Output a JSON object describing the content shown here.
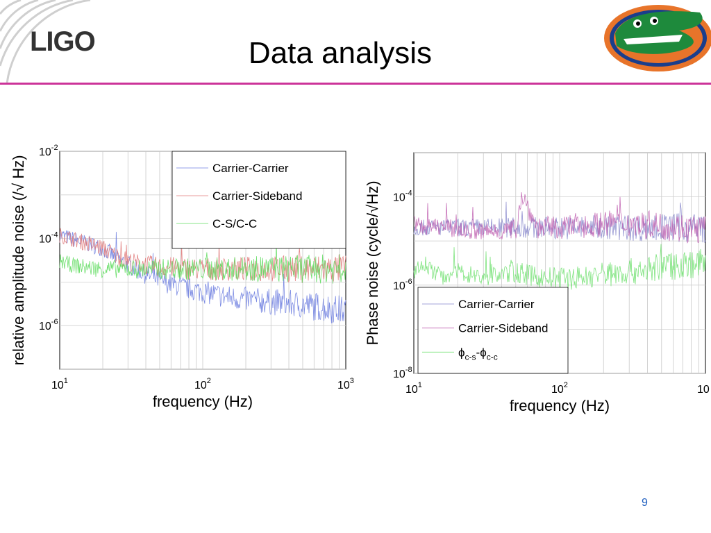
{
  "slide": {
    "title": "Data analysis",
    "logo_text": "LIGO",
    "page_number": "9",
    "accent_color": "#cc3399"
  },
  "chart_data": [
    {
      "type": "line",
      "xscale": "log",
      "yscale": "log",
      "xlim": [
        10,
        1000
      ],
      "ylim": [
        1e-07,
        0.01
      ],
      "xlabel": "frequency (Hz)",
      "ylabel": "relative amplitude noise (/√ Hz)",
      "xticks": [
        {
          "base": "10",
          "exp": "1"
        },
        {
          "base": "10",
          "exp": "2"
        },
        {
          "base": "10",
          "exp": "3"
        }
      ],
      "yticks": [
        {
          "base": "10",
          "exp": "-2",
          "value": 0.01
        },
        {
          "base": "10",
          "exp": "-4",
          "value": 0.0001
        },
        {
          "base": "10",
          "exp": "-6",
          "value": 1e-06
        }
      ],
      "grid": true,
      "legend_position": "top-right",
      "series": [
        {
          "name": "Carrier-Carrier",
          "color": "#6f7fe0",
          "x": [
            10,
            12,
            15,
            20,
            25,
            30,
            40,
            50,
            60,
            80,
            100,
            150,
            200,
            300,
            500,
            700,
            1000
          ],
          "y": [
            0.00012,
            0.0001,
            8e-05,
            6e-05,
            3.5e-05,
            2.5e-05,
            1.5e-05,
            1.1e-05,
            9e-06,
            7e-06,
            6e-06,
            4.5e-06,
            4e-06,
            3.5e-06,
            3e-06,
            2.6e-06,
            2.2e-06
          ]
        },
        {
          "name": "Carrier-Sideband",
          "color": "#e07a7a",
          "x": [
            10,
            12,
            15,
            20,
            25,
            30,
            40,
            50,
            60,
            80,
            100,
            150,
            200,
            300,
            500,
            700,
            1000
          ],
          "y": [
            0.00012,
            0.0001,
            8e-05,
            6e-05,
            4e-05,
            3e-05,
            2.5e-05,
            2.2e-05,
            2.2e-05,
            2e-05,
            2e-05,
            2e-05,
            2e-05,
            2e-05,
            2e-05,
            2e-05,
            2e-05
          ]
        },
        {
          "name": "C-S/C-C",
          "color": "#5fdc5f",
          "x": [
            10,
            12,
            15,
            20,
            25,
            30,
            40,
            50,
            60,
            80,
            100,
            150,
            200,
            300,
            500,
            700,
            1000
          ],
          "y": [
            3e-05,
            2.5e-05,
            2.2e-05,
            2e-05,
            2e-05,
            2e-05,
            2e-05,
            2e-05,
            2e-05,
            2e-05,
            2e-05,
            2e-05,
            2e-05,
            2e-05,
            2e-05,
            2e-05,
            2e-05
          ]
        }
      ]
    },
    {
      "type": "line",
      "xscale": "log",
      "yscale": "log",
      "xlim": [
        10,
        1000
      ],
      "ylim": [
        1e-08,
        0.001
      ],
      "xlabel": "frequency (Hz)",
      "ylabel": "Phase noise (cycle/√Hz)",
      "xticks": [
        {
          "base": "10",
          "exp": "1"
        },
        {
          "base": "10",
          "exp": "2"
        },
        {
          "base": "10",
          "exp": ""
        }
      ],
      "yticks": [
        {
          "base": "10",
          "exp": "-4",
          "value": 0.0001
        },
        {
          "base": "10",
          "exp": "-6",
          "value": 1e-06
        },
        {
          "base": "10",
          "exp": "-8",
          "value": 1e-08
        }
      ],
      "grid": true,
      "legend_position": "bottom-right",
      "series": [
        {
          "name": "Carrier-Carrier",
          "color": "#8888cc",
          "x": [
            10,
            20,
            50,
            100,
            200,
            500,
            1000
          ],
          "y": [
            2e-05,
            2e-05,
            2e-05,
            2e-05,
            2e-05,
            2e-05,
            2e-05
          ]
        },
        {
          "name": "Carrier-Sideband",
          "color": "#c060b0",
          "x": [
            10,
            12,
            15,
            20,
            30,
            50,
            55,
            70,
            100,
            150,
            200,
            300,
            500,
            700,
            1000
          ],
          "y": [
            2.5e-05,
            2e-05,
            2.2e-05,
            1.8e-05,
            1.6e-05,
            1.8e-05,
            0.00012,
            2e-05,
            2e-05,
            2.2e-05,
            2.5e-05,
            2.5e-05,
            2.2e-05,
            2e-05,
            1.8e-05
          ]
        },
        {
          "name": "ϕc-s-ϕc-c",
          "label_parts": {
            "phi": "ϕ",
            "sub1": "c-s",
            "dash": "-",
            "sub2": "c-c"
          },
          "color": "#6fe06f",
          "x": [
            10,
            12,
            15,
            20,
            30,
            50,
            70,
            100,
            150,
            200,
            300,
            500,
            700,
            1000
          ],
          "y": [
            2e-06,
            3e-06,
            1.5e-06,
            2e-06,
            1.5e-06,
            2e-06,
            1.5e-06,
            1.4e-06,
            1.5e-06,
            1.8e-06,
            2e-06,
            2.5e-06,
            3e-06,
            3e-06
          ]
        }
      ]
    }
  ]
}
